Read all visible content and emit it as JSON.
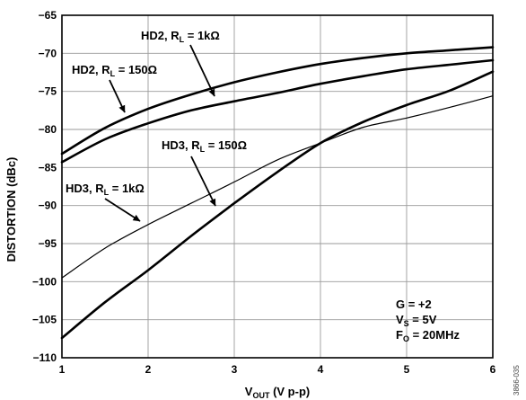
{
  "chart_data": {
    "type": "line",
    "xlabel": {
      "main": "V",
      "sub": "OUT",
      "rest": " (V p-p)"
    },
    "ylabel": "DISTORTION (dBc)",
    "xlim": [
      1,
      6
    ],
    "ylim": [
      -110,
      -65
    ],
    "x_ticks": [
      1,
      2,
      3,
      4,
      5,
      6
    ],
    "y_ticks": [
      -65,
      -70,
      -75,
      -80,
      -85,
      -90,
      -95,
      -100,
      -105,
      -110
    ],
    "x_tick_labels": [
      "1",
      "2",
      "3",
      "4",
      "5",
      "6"
    ],
    "y_tick_labels": [
      "−65",
      "−70",
      "−75",
      "−80",
      "−85",
      "−90",
      "−95",
      "−100",
      "−105",
      "−110"
    ],
    "grid": true,
    "series": [
      {
        "name": "HD2, RL = 1kΩ",
        "stroke": "bold",
        "x": [
          1,
          1.5,
          2,
          2.5,
          3,
          3.5,
          4,
          4.5,
          5,
          5.5,
          6
        ],
        "y": [
          -83.2,
          -79.8,
          -77.3,
          -75.4,
          -73.8,
          -72.5,
          -71.4,
          -70.6,
          -70.0,
          -69.6,
          -69.2
        ]
      },
      {
        "name": "HD2, RL = 150Ω",
        "stroke": "bold",
        "x": [
          1,
          1.5,
          2,
          2.5,
          3,
          3.5,
          4,
          4.5,
          5,
          5.5,
          6
        ],
        "y": [
          -84.3,
          -81.3,
          -79.2,
          -77.5,
          -76.3,
          -75.2,
          -74.0,
          -73.0,
          -72.1,
          -71.5,
          -70.9
        ]
      },
      {
        "name": "HD3, RL = 150Ω",
        "stroke": "bold",
        "x": [
          1,
          1.5,
          2,
          2.5,
          3,
          3.5,
          4,
          4.5,
          5,
          5.5,
          6
        ],
        "y": [
          -107.4,
          -102.7,
          -98.5,
          -94.0,
          -89.7,
          -85.6,
          -81.8,
          -79.0,
          -76.8,
          -74.9,
          -72.4
        ]
      },
      {
        "name": "HD3, RL = 1kΩ",
        "stroke": "thin",
        "x": [
          1,
          1.5,
          2,
          2.5,
          3,
          3.5,
          4,
          4.5,
          5,
          5.5,
          6
        ],
        "y": [
          -99.5,
          -95.6,
          -92.5,
          -89.7,
          -86.9,
          -84.0,
          -81.8,
          -79.7,
          -78.5,
          -77.1,
          -75.6
        ]
      }
    ],
    "annotations": [
      {
        "id": "hd2-1k",
        "parts": [
          "HD2, R",
          "L",
          " = 1kΩ"
        ]
      },
      {
        "id": "hd2-150",
        "parts": [
          "HD2, R",
          "L",
          " = 150Ω"
        ]
      },
      {
        "id": "hd3-150",
        "parts": [
          "HD3, R",
          "L",
          " = 150Ω"
        ]
      },
      {
        "id": "hd3-1k",
        "parts": [
          "HD3, R",
          "L",
          " = 1kΩ"
        ]
      }
    ],
    "conditions": [
      {
        "parts": [
          "G = +2",
          "",
          ""
        ]
      },
      {
        "parts": [
          "V",
          "S",
          " = 5V"
        ]
      },
      {
        "parts": [
          "F",
          "O",
          " = 20MHz"
        ]
      }
    ],
    "figure_id": "3866-035"
  }
}
